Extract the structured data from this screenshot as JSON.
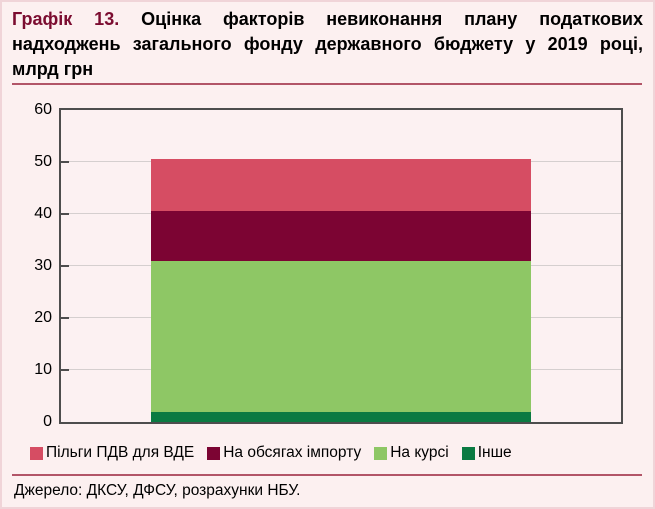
{
  "page": {
    "title_prefix": "Графік 13.",
    "title_rest": "Оцінка факторів невиконання плану податкових надходжень загального фонду державного бюджету у 2019 році, млрд грн",
    "source": "Джерело: ДКСУ, ДФСУ, розрахунки НБУ."
  },
  "legend": [
    {
      "label": "Пільги ПДВ для ВДЕ",
      "color": "#d64d63"
    },
    {
      "label": "На обсягах імпорту",
      "color": "#7c0433"
    },
    {
      "label": "На курсі",
      "color": "#8ec765"
    },
    {
      "label": "Інше",
      "color": "#0a7a42"
    }
  ],
  "colors": {
    "page_background": "#fcf0f0",
    "plot_background": "#fcf1f2",
    "title_accent": "#7b0c30",
    "rule": "#b25568",
    "axis_frame": "#4d4d4d",
    "gridline": "#d5cfcf"
  },
  "chart_data": {
    "type": "bar",
    "stacked": true,
    "title": "Оцінка факторів невиконання плану податкових надходжень загального фонду державного бюджету у 2019 році",
    "units": "млрд грн",
    "xlabel": "",
    "ylabel": "",
    "ylim": [
      0,
      60
    ],
    "yticks": [
      0,
      10,
      20,
      30,
      40,
      50,
      60
    ],
    "grid": true,
    "legend_position": "bottom",
    "categories": [
      ""
    ],
    "series": [
      {
        "name": "Пільги ПДВ для ВДЕ",
        "values": [
          10
        ],
        "color": "#d64d63"
      },
      {
        "name": "На обсягах імпорту",
        "values": [
          9.5
        ],
        "color": "#7c0433"
      },
      {
        "name": "На курсі",
        "values": [
          29
        ],
        "color": "#8ec765"
      },
      {
        "name": "Інше",
        "values": [
          2
        ],
        "color": "#0a7a42"
      }
    ],
    "stack_bottom_to_top": [
      "Інше",
      "На курсі",
      "На обсягах імпорту",
      "Пільги ПДВ для ВДЕ"
    ],
    "stack_total": 50.5
  }
}
